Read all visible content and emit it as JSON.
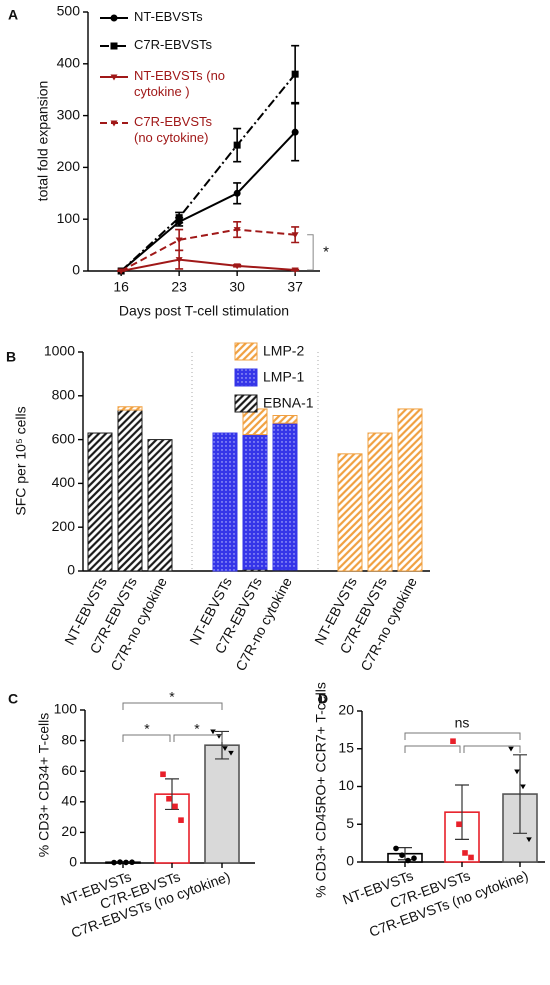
{
  "chart_data": [
    {
      "panel": "A",
      "type": "line",
      "xlabel": "Days post T-cell stimulation",
      "ylabel": "total fold expansion",
      "x": [
        16,
        23,
        30,
        37
      ],
      "xlim": [
        12,
        40
      ],
      "xticks": [
        16,
        23,
        30,
        37
      ],
      "ylim": [
        0,
        500
      ],
      "yticks": [
        0,
        100,
        200,
        300,
        400,
        500
      ],
      "annotation": "*",
      "series": [
        {
          "name": "NT-EBVSTs",
          "color": "#000000",
          "linestyle": "solid",
          "marker": "circle",
          "values": [
            0,
            95,
            150,
            268
          ],
          "errors": [
            0,
            8,
            20,
            55
          ]
        },
        {
          "name": "C7R-EBVSTs",
          "color": "#000000",
          "linestyle": "dashdot",
          "marker": "square",
          "values": [
            0,
            103,
            243,
            380
          ],
          "errors": [
            0,
            10,
            32,
            55
          ]
        },
        {
          "name": "NT-EBVSTs (no cytokine )",
          "color": "#a01818",
          "linestyle": "solid",
          "marker": "triangle",
          "values": [
            0,
            22,
            10,
            2
          ],
          "errors": [
            0,
            18,
            2,
            1
          ]
        },
        {
          "name": "C7R-EBVSTs (no cytokine)",
          "color": "#a01818",
          "linestyle": "dashed",
          "marker": "triangle",
          "values": [
            0,
            60,
            80,
            70
          ],
          "errors": [
            0,
            20,
            15,
            15
          ]
        }
      ]
    },
    {
      "panel": "B",
      "type": "bar",
      "stacked": true,
      "ylabel": "SFC per 10⁵ cells",
      "categories": [
        "NT-EBVSTs",
        "C7R-EBVSTs",
        "C7R-no cytokine",
        "NT-EBVSTs",
        "C7R-EBVSTs",
        "C7R-no cytokine",
        "NT-EBVSTs",
        "C7R-EBVSTs",
        "C7R-no cytokine"
      ],
      "ylim": [
        0,
        1000
      ],
      "yticks": [
        0,
        200,
        400,
        600,
        800,
        1000
      ],
      "series": [
        {
          "name": "EBNA-1",
          "color": "#1a1a1a",
          "fill": "hatch",
          "values": [
            630,
            735,
            600,
            0,
            8,
            5,
            0,
            0,
            0
          ]
        },
        {
          "name": "LMP-1",
          "color": "#3535e8",
          "fill": "dots",
          "values": [
            0,
            0,
            0,
            630,
            615,
            670,
            0,
            0,
            0
          ]
        },
        {
          "name": "LMP-2",
          "color": "#f0a040",
          "fill": "hatch",
          "values": [
            0,
            15,
            0,
            0,
            117,
            35,
            535,
            630,
            740
          ]
        }
      ]
    },
    {
      "panel": "C",
      "type": "bar",
      "ylabel": "% CD3+ CD34+ T-cells",
      "categories": [
        "NT-EBVSTs",
        "C7R-EBVSTs",
        "C7R-EBVSTs (no cytokine)"
      ],
      "values": [
        0.5,
        45,
        77
      ],
      "errors": [
        0.3,
        10,
        9
      ],
      "points": [
        [
          0.3,
          0.6,
          0.4,
          0.5
        ],
        [
          58,
          42,
          37,
          28
        ],
        [
          86,
          83,
          75,
          72
        ]
      ],
      "edge_colors": [
        "#000000",
        "#e8202a",
        "#555555"
      ],
      "fill_colors": [
        "#ffffff",
        "#ffffff",
        "#d9d9d9"
      ],
      "point_colors": [
        "#000000",
        "#e8202a",
        "#000000"
      ],
      "point_markers": [
        "circle",
        "square",
        "triangle"
      ],
      "ylim": [
        0,
        100
      ],
      "yticks": [
        0,
        20,
        40,
        60,
        80,
        100
      ],
      "annotations": [
        "*",
        "*",
        "*"
      ]
    },
    {
      "panel": "D",
      "type": "bar",
      "ylabel": "% CD3+ CD45RO+ CCR7+ T-cells",
      "categories": [
        "NT-EBVSTs",
        "C7R-EBVSTs",
        "C7R-EBVSTs (no cytokine)"
      ],
      "values": [
        1.1,
        6.6,
        9.0
      ],
      "errors": [
        0.8,
        3.6,
        5.2
      ],
      "points": [
        [
          1.8,
          0.9,
          0.2,
          0.5
        ],
        [
          16,
          5,
          1.2,
          0.6
        ],
        [
          15,
          12,
          10,
          3
        ]
      ],
      "edge_colors": [
        "#000000",
        "#e8202a",
        "#555555"
      ],
      "fill_colors": [
        "#ffffff",
        "#ffffff",
        "#d9d9d9"
      ],
      "point_colors": [
        "#000000",
        "#e8202a",
        "#000000"
      ],
      "point_markers": [
        "circle",
        "square",
        "triangle"
      ],
      "ylim": [
        0,
        20
      ],
      "yticks": [
        0,
        5,
        10,
        15,
        20
      ],
      "annotations": [
        "ns"
      ]
    }
  ]
}
